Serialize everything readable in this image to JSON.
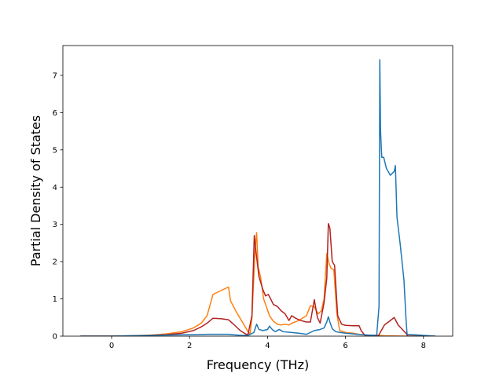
{
  "chart_data": {
    "type": "line",
    "title": "",
    "xlabel": "Frequency (THz)",
    "ylabel": "Partial Density of States",
    "xlim": [
      -1.25,
      8.75
    ],
    "ylim": [
      0,
      7.8
    ],
    "xticks": [
      0,
      2,
      4,
      6,
      8
    ],
    "yticks": [
      0,
      1,
      2,
      3,
      4,
      5,
      6,
      7
    ],
    "grid": false,
    "legend": null,
    "series": [
      {
        "color": "#ff7f0e",
        "points": [
          [
            -0.8,
            0
          ],
          [
            0.0,
            0.0
          ],
          [
            0.5,
            0.01
          ],
          [
            1.0,
            0.03
          ],
          [
            1.4,
            0.06
          ],
          [
            1.8,
            0.12
          ],
          [
            2.1,
            0.22
          ],
          [
            2.3,
            0.35
          ],
          [
            2.45,
            0.55
          ],
          [
            2.6,
            1.12
          ],
          [
            2.8,
            1.22
          ],
          [
            3.0,
            1.32
          ],
          [
            3.05,
            0.95
          ],
          [
            3.2,
            0.65
          ],
          [
            3.4,
            0.3
          ],
          [
            3.5,
            0.12
          ],
          [
            3.55,
            0.05
          ],
          [
            3.6,
            0.5
          ],
          [
            3.68,
            2.3
          ],
          [
            3.72,
            2.78
          ],
          [
            3.76,
            1.85
          ],
          [
            3.82,
            1.6
          ],
          [
            3.9,
            1.0
          ],
          [
            4.05,
            0.55
          ],
          [
            4.15,
            0.4
          ],
          [
            4.25,
            0.32
          ],
          [
            4.35,
            0.3
          ],
          [
            4.45,
            0.32
          ],
          [
            4.55,
            0.3
          ],
          [
            4.65,
            0.36
          ],
          [
            4.8,
            0.42
          ],
          [
            5.0,
            0.55
          ],
          [
            5.1,
            0.82
          ],
          [
            5.2,
            0.78
          ],
          [
            5.3,
            0.6
          ],
          [
            5.38,
            0.68
          ],
          [
            5.45,
            1.0
          ],
          [
            5.52,
            2.22
          ],
          [
            5.58,
            1.95
          ],
          [
            5.63,
            1.82
          ],
          [
            5.7,
            1.78
          ],
          [
            5.78,
            0.6
          ],
          [
            5.85,
            0.15
          ],
          [
            6.0,
            0.1
          ],
          [
            6.2,
            0.08
          ],
          [
            6.35,
            0.05
          ],
          [
            6.5,
            0.03
          ],
          [
            6.8,
            0.02
          ],
          [
            7.0,
            0.01
          ],
          [
            7.5,
            0.0
          ],
          [
            8.3,
            0
          ]
        ]
      },
      {
        "color": "#b22222",
        "points": [
          [
            -0.8,
            0
          ],
          [
            0.0,
            0.0
          ],
          [
            0.8,
            0.01
          ],
          [
            1.4,
            0.04
          ],
          [
            1.8,
            0.08
          ],
          [
            2.1,
            0.15
          ],
          [
            2.3,
            0.25
          ],
          [
            2.45,
            0.35
          ],
          [
            2.6,
            0.48
          ],
          [
            2.8,
            0.47
          ],
          [
            3.0,
            0.44
          ],
          [
            3.15,
            0.3
          ],
          [
            3.3,
            0.15
          ],
          [
            3.45,
            0.05
          ],
          [
            3.5,
            0.05
          ],
          [
            3.6,
            0.55
          ],
          [
            3.66,
            2.7
          ],
          [
            3.7,
            2.3
          ],
          [
            3.78,
            1.6
          ],
          [
            3.88,
            1.25
          ],
          [
            3.95,
            1.08
          ],
          [
            4.02,
            1.12
          ],
          [
            4.08,
            1.0
          ],
          [
            4.15,
            0.85
          ],
          [
            4.25,
            0.8
          ],
          [
            4.35,
            0.68
          ],
          [
            4.45,
            0.6
          ],
          [
            4.55,
            0.42
          ],
          [
            4.62,
            0.55
          ],
          [
            4.72,
            0.48
          ],
          [
            4.85,
            0.42
          ],
          [
            5.0,
            0.38
          ],
          [
            5.1,
            0.38
          ],
          [
            5.2,
            0.98
          ],
          [
            5.28,
            0.5
          ],
          [
            5.35,
            0.35
          ],
          [
            5.45,
            0.9
          ],
          [
            5.52,
            1.55
          ],
          [
            5.56,
            3.02
          ],
          [
            5.6,
            2.9
          ],
          [
            5.66,
            2.0
          ],
          [
            5.72,
            1.9
          ],
          [
            5.8,
            0.55
          ],
          [
            5.9,
            0.32
          ],
          [
            6.0,
            0.29
          ],
          [
            6.2,
            0.28
          ],
          [
            6.35,
            0.28
          ],
          [
            6.4,
            0.15
          ],
          [
            6.5,
            0.02
          ],
          [
            6.85,
            0.02
          ],
          [
            6.88,
            0.08
          ],
          [
            7.0,
            0.3
          ],
          [
            7.1,
            0.38
          ],
          [
            7.25,
            0.5
          ],
          [
            7.35,
            0.3
          ],
          [
            7.55,
            0.08
          ],
          [
            7.6,
            0.0
          ],
          [
            8.3,
            0
          ]
        ]
      },
      {
        "color": "#1f77b4",
        "points": [
          [
            -0.8,
            0
          ],
          [
            0.0,
            0.0
          ],
          [
            1.0,
            0.02
          ],
          [
            2.0,
            0.04
          ],
          [
            2.5,
            0.05
          ],
          [
            3.0,
            0.05
          ],
          [
            3.3,
            0.02
          ],
          [
            3.5,
            0.02
          ],
          [
            3.65,
            0.1
          ],
          [
            3.72,
            0.32
          ],
          [
            3.78,
            0.18
          ],
          [
            3.88,
            0.15
          ],
          [
            4.0,
            0.18
          ],
          [
            4.05,
            0.27
          ],
          [
            4.12,
            0.18
          ],
          [
            4.2,
            0.12
          ],
          [
            4.3,
            0.18
          ],
          [
            4.4,
            0.12
          ],
          [
            4.6,
            0.1
          ],
          [
            4.8,
            0.08
          ],
          [
            5.0,
            0.05
          ],
          [
            5.2,
            0.15
          ],
          [
            5.35,
            0.18
          ],
          [
            5.45,
            0.22
          ],
          [
            5.52,
            0.38
          ],
          [
            5.56,
            0.52
          ],
          [
            5.6,
            0.38
          ],
          [
            5.66,
            0.2
          ],
          [
            5.75,
            0.12
          ],
          [
            5.85,
            0.1
          ],
          [
            6.0,
            0.08
          ],
          [
            6.3,
            0.05
          ],
          [
            6.6,
            0.03
          ],
          [
            6.8,
            0.02
          ],
          [
            6.86,
            0.8
          ],
          [
            6.88,
            7.42
          ],
          [
            6.9,
            5.5
          ],
          [
            6.93,
            4.8
          ],
          [
            6.98,
            4.8
          ],
          [
            7.05,
            4.5
          ],
          [
            7.15,
            4.32
          ],
          [
            7.25,
            4.42
          ],
          [
            7.28,
            4.58
          ],
          [
            7.32,
            3.2
          ],
          [
            7.4,
            2.5
          ],
          [
            7.5,
            1.5
          ],
          [
            7.55,
            0.5
          ],
          [
            7.58,
            0.05
          ],
          [
            8.3,
            0
          ]
        ]
      }
    ]
  }
}
